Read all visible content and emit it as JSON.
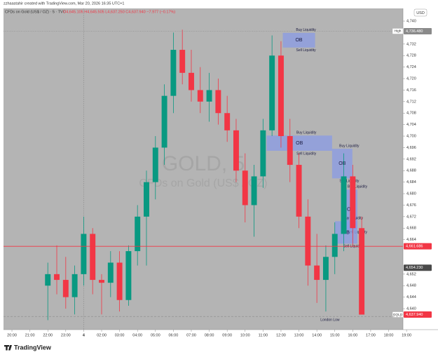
{
  "chart_data": {
    "type": "candlestick",
    "credit": "zzhaastahir created with TradingView.com, Mar 20, 2026 16:35 UTC+1",
    "symbol": "CFDs on Gold (US$ / OZ) · 5 · TVC",
    "ohlc_text": "O4,645.105 H4,645.505 L4,637.250 C4,637.940 −7.977 (−0.17%)",
    "currency": "USD",
    "watermark": "GOLD, 5",
    "watermark_sub": "CFDs on Gold (US$ / OZ)",
    "brand": "TradingView",
    "up_color": "#089981",
    "down_color": "#f23645",
    "x": [
      2,
      2.5,
      3,
      3.5,
      4,
      4.5,
      5,
      5.5,
      6,
      6.5,
      7,
      7.5,
      8,
      8.5,
      9,
      9.5,
      10,
      10.5,
      11,
      11.5,
      12,
      12.5,
      13,
      13.5,
      14,
      14.5,
      15,
      15.5,
      16,
      16.5,
      17,
      17.5,
      18,
      18.5,
      19,
      19.5
    ],
    "open": [
      4648,
      4652,
      4650,
      4644,
      4652,
      4666,
      4650,
      4649,
      4656,
      4643,
      4660,
      4672,
      4684,
      4696,
      4714,
      4730,
      4722,
      4716,
      4712,
      4716,
      4708,
      4702,
      4688,
      4676,
      4686,
      4702,
      4728,
      4700,
      4690,
      4672,
      4655,
      4650,
      4658,
      4666,
      4686,
      4668
    ],
    "high": [
      4656,
      4662,
      4658,
      4655,
      4672,
      4668,
      4652,
      4660,
      4660,
      4662,
      4676,
      4688,
      4700,
      4718,
      4736,
      4737,
      4730,
      4724,
      4722,
      4720,
      4714,
      4706,
      4694,
      4690,
      4706,
      4735,
      4733,
      4706,
      4694,
      4678,
      4666,
      4662,
      4670,
      4694,
      4690,
      4672
    ],
    "low": [
      4636,
      4645,
      4640,
      4638,
      4648,
      4645,
      4638,
      4644,
      4639,
      4641,
      4655,
      4655,
      4678,
      4690,
      4708,
      4718,
      4712,
      4708,
      4705,
      4704,
      4698,
      4684,
      4670,
      4665,
      4682,
      4700,
      4696,
      4684,
      4668,
      4648,
      4642,
      4639,
      4652,
      4660,
      4662,
      4637.94
    ],
    "close": [
      4652,
      4650,
      4644,
      4652,
      4666,
      4650,
      4649,
      4656,
      4643,
      4660,
      4672,
      4684,
      4696,
      4714,
      4730,
      4722,
      4716,
      4712,
      4716,
      4708,
      4702,
      4688,
      4676,
      4686,
      4702,
      4728,
      4700,
      4690,
      4672,
      4655,
      4650,
      4658,
      4666,
      4686,
      4668,
      4637.94
    ],
    "xlim": [
      -0.47,
      21.8
    ],
    "xticks": [
      {
        "value": 0,
        "label": "20:00"
      },
      {
        "value": 1,
        "label": "21:00"
      },
      {
        "value": 2,
        "label": "22:00"
      },
      {
        "value": 3,
        "label": "23:00"
      },
      4,
      {
        "value": 5,
        "label": "02:00"
      },
      {
        "value": 6,
        "label": "03:00"
      },
      {
        "value": 7,
        "label": "04:00"
      },
      {
        "value": 8,
        "label": "05:00"
      },
      {
        "value": 9,
        "label": "06:00"
      },
      {
        "value": 10,
        "label": "07:00"
      },
      {
        "value": 11,
        "label": "08:00"
      },
      {
        "value": 12,
        "label": "09:00"
      },
      {
        "value": 13,
        "label": "10:00"
      },
      {
        "value": 14,
        "label": "11:00"
      },
      {
        "value": 15,
        "label": "12:00"
      },
      {
        "value": 16,
        "label": "13:00"
      },
      {
        "value": 17,
        "label": "14:00"
      },
      {
        "value": 18,
        "label": "15:00"
      },
      {
        "value": 19,
        "label": "16:00"
      },
      {
        "value": 20,
        "label": "17:00"
      },
      {
        "value": 21,
        "label": "18:00"
      },
      {
        "value": 22,
        "label": "19:00"
      }
    ],
    "session_break": 4,
    "ylim": [
      4632.7,
      4744.4
    ],
    "yticks": [
      {
        "value": 4640,
        "label": "4,640"
      },
      {
        "value": 4644,
        "label": "4,644"
      },
      {
        "value": 4648,
        "label": "4,648"
      },
      {
        "value": 4652,
        "label": "4,652"
      },
      {
        "value": 4664,
        "label": "4,664"
      },
      {
        "value": 4668,
        "label": "4,668"
      },
      {
        "value": 4672,
        "label": "4,672"
      },
      {
        "value": 4676,
        "label": "4,676"
      },
      {
        "value": 4680,
        "label": "4,680"
      },
      {
        "value": 4684,
        "label": "4,684"
      },
      {
        "value": 4688,
        "label": "4,688"
      },
      {
        "value": 4692,
        "label": "4,692"
      },
      {
        "value": 4696,
        "label": "4,696"
      },
      {
        "value": 4700,
        "label": "4,700"
      },
      {
        "value": 4704,
        "label": "4,704"
      },
      {
        "value": 4708,
        "label": "4,708"
      },
      {
        "value": 4712,
        "label": "4,712"
      },
      {
        "value": 4716,
        "label": "4,716"
      },
      {
        "value": 4720,
        "label": "4,720"
      },
      {
        "value": 4724,
        "label": "4,724"
      },
      {
        "value": 4728,
        "label": "4,728"
      },
      {
        "value": 4732,
        "label": "4,732"
      },
      {
        "value": 4740,
        "label": "4,740"
      }
    ],
    "grid": false,
    "levels": [
      {
        "value": 4736.48,
        "label": "4,736.480",
        "tag": "High",
        "color": "#8a8a8a",
        "style": "dotted"
      },
      {
        "value": 4661.686,
        "label": "4,661.686",
        "color": "#f23645",
        "style": "solid"
      },
      {
        "value": 4654.23,
        "label": "4,654.230",
        "color": "#4a4a4a",
        "style": "none"
      },
      {
        "value": 4637.94,
        "label": "4,637.940",
        "tag": "GOLD",
        "color": "#f23645",
        "style": "none"
      },
      {
        "value": 4637.3,
        "text": "London Low",
        "text_x": 17.2,
        "color": "#8a8a8a",
        "style": "dashed"
      }
    ],
    "zones": [
      {
        "label": "OB",
        "top_text": "Buy Liquidity",
        "bottom_text": "Sell Liquidity",
        "x": [
          15.1,
          16.9
        ],
        "y": [
          4730.8,
          4735.9
        ]
      },
      {
        "label": "OB",
        "top_text": "Buy Liquidity",
        "bottom_text": "Sell Liquidity",
        "x": [
          14.2,
          17.85
        ],
        "y": [
          4694.9,
          4700.2
        ]
      },
      {
        "label": "OB",
        "top_text": "Buy Liquidity",
        "bottom_text": "Sell Liquidity",
        "x": [
          17.85,
          18.98
        ],
        "y": [
          4685.3,
          4695.6
        ]
      },
      {
        "label": "OB",
        "top_text": "Buy Liquidity",
        "bottom_text": "Sell Liquidity",
        "x": [
          18.48,
          19.26
        ],
        "y": [
          4667.5,
          4681.4
        ]
      },
      {
        "label": "OB",
        "top_text": "Buy Liquidity",
        "bottom_text": "Sell Liquidity",
        "x": [
          18.0,
          19.26
        ],
        "y": [
          4662.6,
          4670.4
        ]
      }
    ],
    "zone_color": "#8a9be6"
  }
}
